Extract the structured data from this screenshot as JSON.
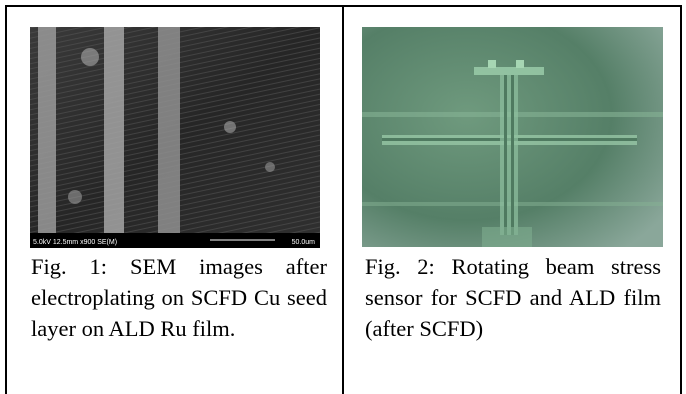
{
  "sem_image": {
    "info": "5.0kV 12.5mm x900 SE(M)",
    "scale": "50.0um"
  },
  "figures": [
    {
      "caption": "Fig. 1: SEM images after electroplating on SCFD Cu seed layer on ALD Ru film."
    },
    {
      "caption": "Fig. 2: Rotating beam stress sensor for SCFD and ALD film (after SCFD)"
    }
  ]
}
